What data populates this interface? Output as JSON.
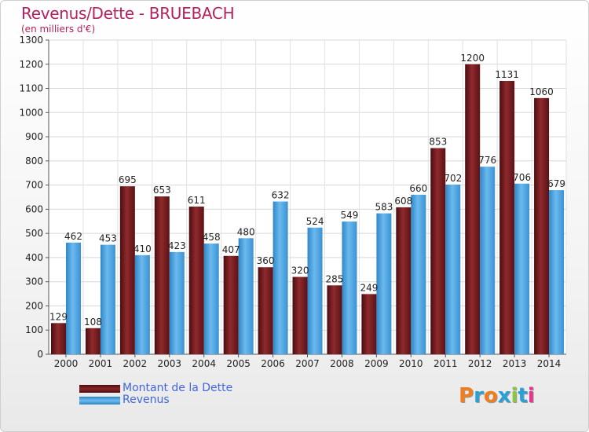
{
  "chart_data": {
    "type": "bar",
    "title": "Revenus/Dette - BRUEBACH",
    "subtitle": "(en milliers d'€)",
    "categories": [
      "2000",
      "2001",
      "2002",
      "2003",
      "2004",
      "2005",
      "2006",
      "2007",
      "2008",
      "2009",
      "2010",
      "2011",
      "2012",
      "2013",
      "2014"
    ],
    "series": [
      {
        "name": "Montant de la Dette",
        "color": "#7a1a1c",
        "values": [
          129,
          108,
          695,
          653,
          611,
          407,
          360,
          320,
          285,
          249,
          608,
          853,
          1200,
          1131,
          1060
        ]
      },
      {
        "name": "Revenus",
        "color": "#4aa3e0",
        "values": [
          462,
          453,
          410,
          423,
          458,
          480,
          632,
          524,
          549,
          583,
          660,
          702,
          776,
          706,
          679
        ]
      }
    ],
    "ylim": [
      0,
      1300
    ],
    "yticks": [
      0,
      100,
      200,
      300,
      400,
      500,
      600,
      700,
      800,
      900,
      1000,
      1100,
      1200,
      1300
    ],
    "grid": true,
    "legend": "bottom-left"
  },
  "logo": {
    "text": "Proxiti",
    "letters": [
      "P",
      "r",
      "o",
      "x",
      "i",
      "t",
      "i"
    ],
    "colors": [
      "#f07e1e",
      "#2aa0d8",
      "#f07e1e",
      "#2aa0d8",
      "#8cc63f",
      "#2aa0d8",
      "#e8348c"
    ]
  }
}
